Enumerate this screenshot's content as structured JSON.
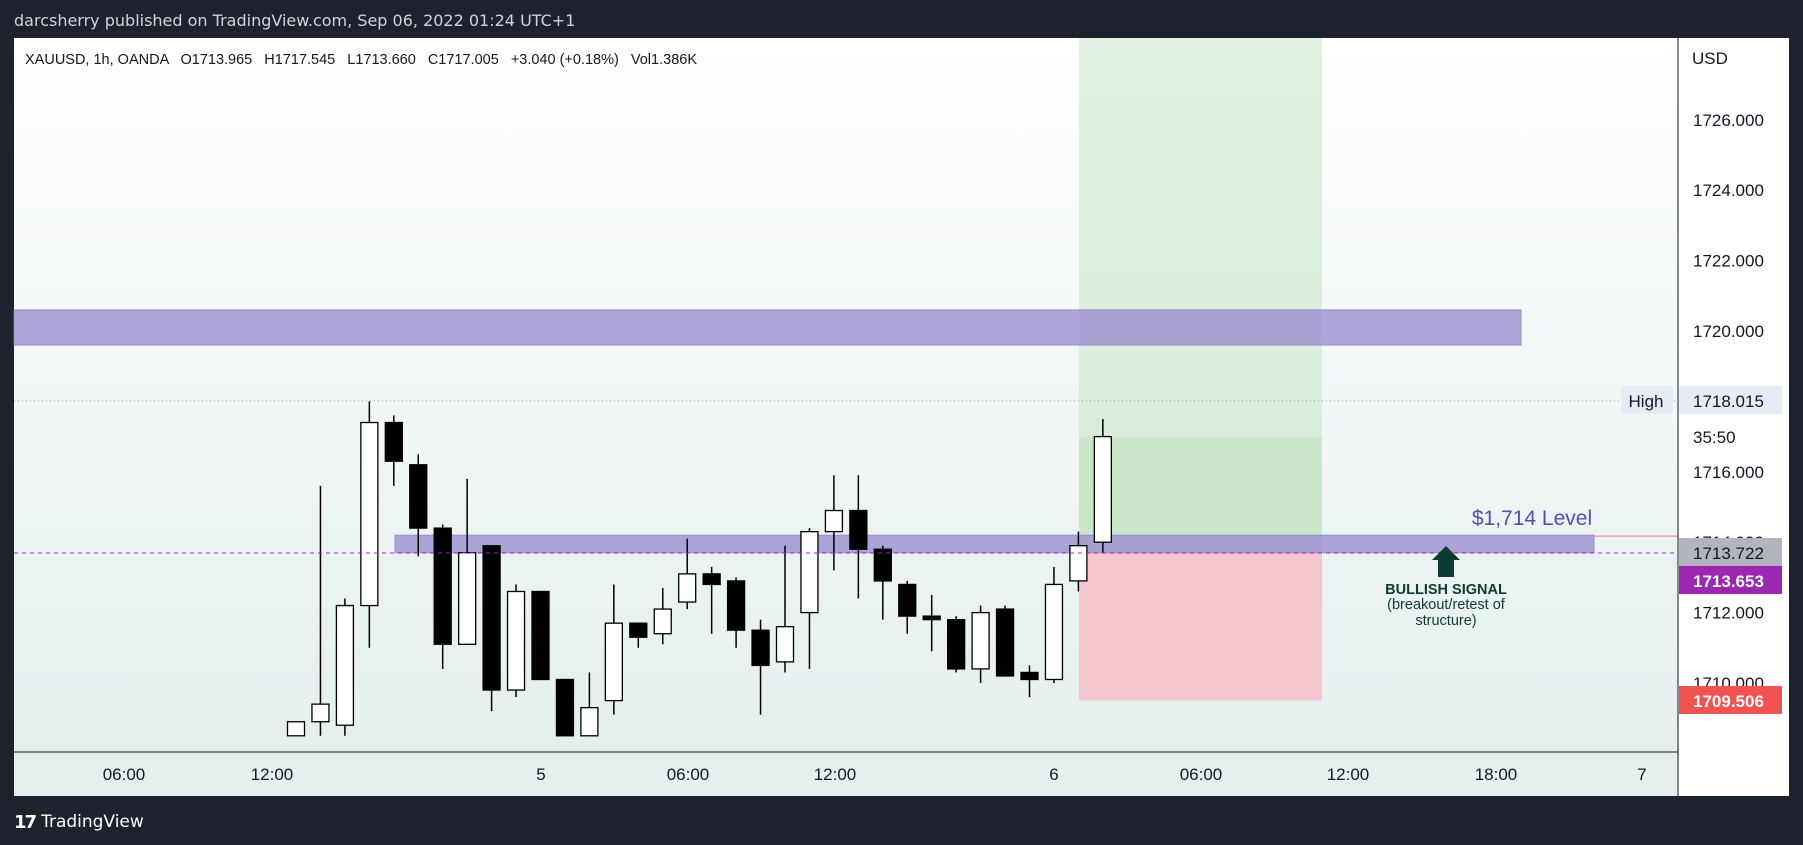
{
  "publish_line": "darcsherry published on TradingView.com, Sep 06, 2022 01:24 UTC+1",
  "legend": {
    "symbol": "XAUUSD, 1h, OANDA",
    "open": "O1713.965",
    "high": "H1717.545",
    "low": "L1713.660",
    "close": "C1717.005",
    "change": "+3.040 (+0.18%)",
    "volume": "Vol1.386K"
  },
  "currency_label": "USD",
  "footer_brand": "TradingView",
  "price_labels": {
    "high_tag": "High",
    "high_value": "1718.015",
    "countdown": "35:50",
    "level_line": "1713.722",
    "last_price": "1713.653",
    "stop_price": "1709.506"
  },
  "annotations": {
    "level_label": "$1,714 Level",
    "signal_line1": "BULLISH SIGNAL",
    "signal_line2": "(breakout/retest of",
    "signal_line3": "structure)"
  },
  "colors": {
    "bull_body": "#ffffff",
    "bear_body": "#000000",
    "zone_fill": "#9c8fd0",
    "target_fill": "#c8e6c9",
    "stop_fill": "#f4c2c6",
    "last_price_bg": "#9c27b0",
    "stop_label_bg": "#f05350",
    "arrow": "#0d3b33"
  },
  "chart_data": {
    "type": "candlestick",
    "symbol": "XAUUSD",
    "timeframe": "1h",
    "ylim": [
      1708.6,
      1728.9
    ],
    "y_ticks": [
      1710.0,
      1712.0,
      1714.0,
      1716.0,
      1718.0,
      1720.0,
      1722.0,
      1724.0,
      1726.0
    ],
    "x_ticks": [
      "06:00",
      "12:00",
      "5",
      "06:00",
      "12:00",
      "6",
      "06:00",
      "12:00",
      "18:00",
      "7"
    ],
    "candles": [
      {
        "o": 1708.5,
        "h": 1708.9,
        "l": 1708.5,
        "c": 1708.9
      },
      {
        "o": 1708.9,
        "h": 1715.6,
        "l": 1708.5,
        "c": 1709.4
      },
      {
        "o": 1708.8,
        "h": 1712.4,
        "l": 1708.5,
        "c": 1712.2
      },
      {
        "o": 1712.2,
        "h": 1718.0,
        "l": 1711.0,
        "c": 1717.4
      },
      {
        "o": 1717.4,
        "h": 1717.6,
        "l": 1715.6,
        "c": 1716.3
      },
      {
        "o": 1716.2,
        "h": 1716.5,
        "l": 1713.6,
        "c": 1714.4
      },
      {
        "o": 1714.4,
        "h": 1714.5,
        "l": 1710.4,
        "c": 1711.1
      },
      {
        "o": 1711.1,
        "h": 1715.8,
        "l": 1711.1,
        "c": 1713.7
      },
      {
        "o": 1713.9,
        "h": 1713.9,
        "l": 1709.2,
        "c": 1709.8
      },
      {
        "o": 1709.8,
        "h": 1712.8,
        "l": 1709.6,
        "c": 1712.6
      },
      {
        "o": 1712.6,
        "h": 1712.6,
        "l": 1710.2,
        "c": 1710.1
      },
      {
        "o": 1710.1,
        "h": 1710.1,
        "l": 1708.5,
        "c": 1708.5
      },
      {
        "o": 1708.5,
        "h": 1710.3,
        "l": 1708.5,
        "c": 1709.3
      },
      {
        "o": 1709.5,
        "h": 1712.8,
        "l": 1709.1,
        "c": 1711.7
      },
      {
        "o": 1711.7,
        "h": 1711.7,
        "l": 1711.0,
        "c": 1711.3
      },
      {
        "o": 1711.4,
        "h": 1712.7,
        "l": 1711.1,
        "c": 1712.1
      },
      {
        "o": 1712.3,
        "h": 1714.1,
        "l": 1712.1,
        "c": 1713.1
      },
      {
        "o": 1713.1,
        "h": 1713.3,
        "l": 1711.4,
        "c": 1712.8
      },
      {
        "o": 1712.9,
        "h": 1713.0,
        "l": 1711.0,
        "c": 1711.5
      },
      {
        "o": 1711.5,
        "h": 1711.8,
        "l": 1709.1,
        "c": 1710.5
      },
      {
        "o": 1710.6,
        "h": 1713.9,
        "l": 1710.3,
        "c": 1711.6
      },
      {
        "o": 1712.0,
        "h": 1714.4,
        "l": 1710.4,
        "c": 1714.3
      },
      {
        "o": 1714.3,
        "h": 1715.9,
        "l": 1713.2,
        "c": 1714.9
      },
      {
        "o": 1714.9,
        "h": 1715.9,
        "l": 1712.4,
        "c": 1713.8
      },
      {
        "o": 1713.8,
        "h": 1713.9,
        "l": 1711.8,
        "c": 1712.9
      },
      {
        "o": 1712.8,
        "h": 1712.9,
        "l": 1711.4,
        "c": 1711.9
      },
      {
        "o": 1711.9,
        "h": 1712.5,
        "l": 1710.9,
        "c": 1711.8
      },
      {
        "o": 1711.8,
        "h": 1711.9,
        "l": 1710.3,
        "c": 1710.4
      },
      {
        "o": 1710.4,
        "h": 1712.2,
        "l": 1710.0,
        "c": 1712.0
      },
      {
        "o": 1712.1,
        "h": 1712.2,
        "l": 1710.2,
        "c": 1710.2
      },
      {
        "o": 1710.3,
        "h": 1710.5,
        "l": 1709.6,
        "c": 1710.1
      },
      {
        "o": 1710.1,
        "h": 1713.3,
        "l": 1710.0,
        "c": 1712.8
      },
      {
        "o": 1712.9,
        "h": 1714.3,
        "l": 1712.6,
        "c": 1713.9
      },
      {
        "o": 1714.0,
        "h": 1717.5,
        "l": 1713.7,
        "c": 1717.0
      }
    ],
    "zones": [
      {
        "name": "resistance zone",
        "from": 1719.6,
        "to": 1720.6
      },
      {
        "name": "$1,714 level",
        "from": 1713.7,
        "to": 1714.2
      }
    ],
    "position": {
      "entry": 1713.72,
      "target": 1726.3,
      "stop": 1709.506
    },
    "price_lines": {
      "high": 1718.015,
      "last": 1713.653,
      "level": 1713.722
    }
  }
}
